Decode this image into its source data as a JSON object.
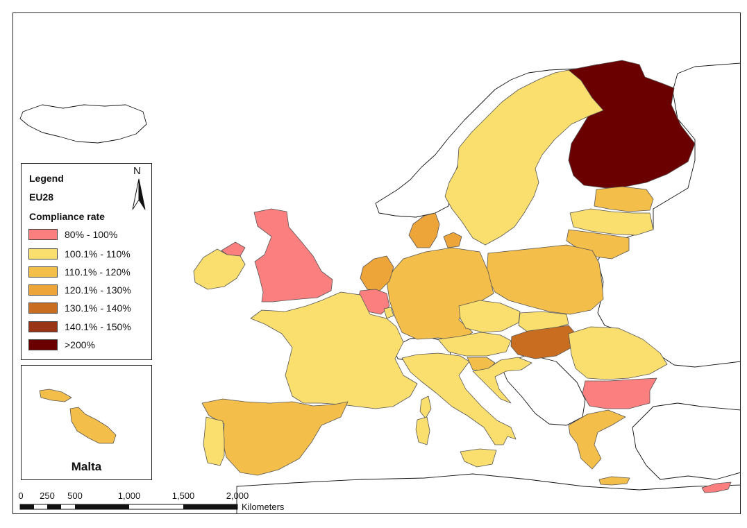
{
  "legend": {
    "title": "Legend",
    "layer": "EU28",
    "field": "Compliance rate",
    "classes": [
      {
        "label": "80% - 100%",
        "color": "#fb7f7f"
      },
      {
        "label": "100.1% - 110%",
        "color": "#fadf6e"
      },
      {
        "label": "110.1% - 120%",
        "color": "#f4be4a"
      },
      {
        "label": "120.1% - 130%",
        "color": "#eda53a"
      },
      {
        "label": "130.1% - 140%",
        "color": "#c96e20"
      },
      {
        "label": "140.1% - 150%",
        "color": "#993514"
      },
      {
        "label": ">200%",
        "color": "#6b0000"
      }
    ]
  },
  "north_arrow": {
    "letter": "N"
  },
  "inset": {
    "label": "Malta"
  },
  "scale_bar": {
    "ticks": [
      "0",
      "250",
      "500",
      "1,000",
      "1,500",
      "2,000"
    ],
    "unit": "Kilometers"
  },
  "countries": [
    {
      "name": "Finland",
      "class": 6
    },
    {
      "name": "Sweden",
      "class": 1
    },
    {
      "name": "Estonia",
      "class": 2
    },
    {
      "name": "Latvia",
      "class": 1
    },
    {
      "name": "Lithuania",
      "class": 2
    },
    {
      "name": "Poland",
      "class": 2
    },
    {
      "name": "Germany",
      "class": 2
    },
    {
      "name": "Denmark",
      "class": 3
    },
    {
      "name": "Netherlands",
      "class": 3
    },
    {
      "name": "Belgium",
      "class": 0
    },
    {
      "name": "Luxembourg",
      "class": 1
    },
    {
      "name": "France",
      "class": 1
    },
    {
      "name": "United Kingdom",
      "class": 0
    },
    {
      "name": "Ireland",
      "class": 1
    },
    {
      "name": "Spain",
      "class": 2
    },
    {
      "name": "Portugal",
      "class": 1
    },
    {
      "name": "Italy",
      "class": 1
    },
    {
      "name": "Austria",
      "class": 1
    },
    {
      "name": "Czech Republic",
      "class": 1
    },
    {
      "name": "Slovakia",
      "class": 1
    },
    {
      "name": "Hungary",
      "class": 4
    },
    {
      "name": "Slovenia",
      "class": 2
    },
    {
      "name": "Croatia",
      "class": 1
    },
    {
      "name": "Romania",
      "class": 1
    },
    {
      "name": "Bulgaria",
      "class": 0
    },
    {
      "name": "Greece",
      "class": 2
    },
    {
      "name": "Cyprus",
      "class": 0
    },
    {
      "name": "Malta",
      "class": 2
    }
  ]
}
